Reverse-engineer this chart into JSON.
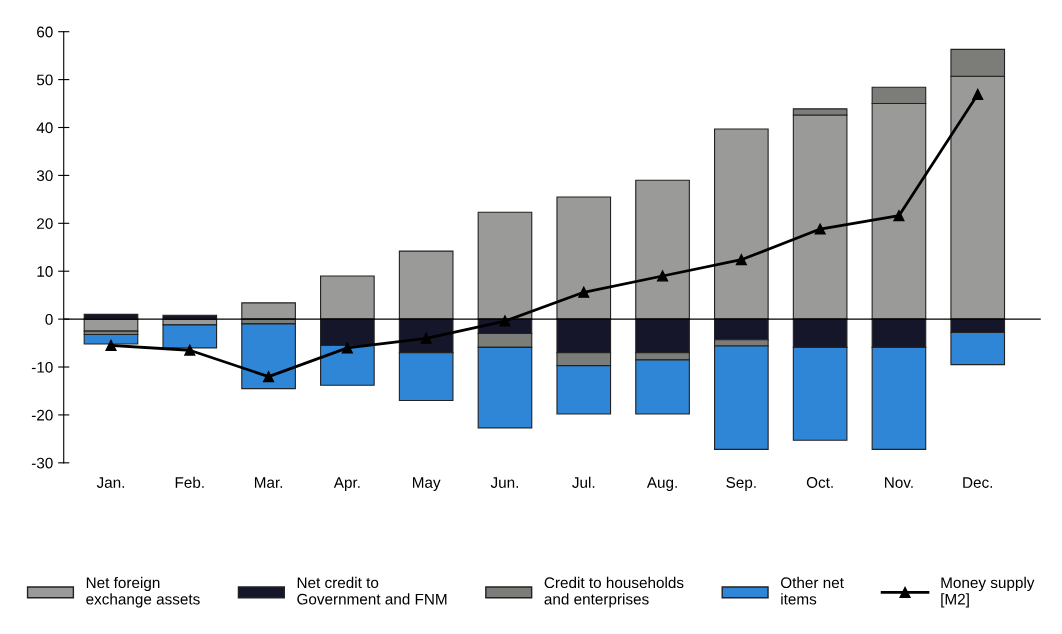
{
  "chart_data": {
    "type": "bar",
    "stacked": true,
    "categories": [
      "Jan.",
      "Feb.",
      "Mar.",
      "Apr.",
      "May",
      "Jun.",
      "Jul.",
      "Aug.",
      "Sep.",
      "Oct.",
      "Nov.",
      "Dec."
    ],
    "series": [
      {
        "name": "Net foreign\nexchange assets",
        "color": "#9a9a98",
        "values": [
          -2.5,
          -1.2,
          3.4,
          9.0,
          14.2,
          22.3,
          25.5,
          29.0,
          39.7,
          42.6,
          45.0,
          50.7
        ]
      },
      {
        "name": "Net credit to\nGovernment and FNM",
        "color": "#16162a",
        "values": [
          1.0,
          0.8,
          null,
          -5.5,
          -7.0,
          -3.0,
          -7.0,
          -7.0,
          -4.3,
          -5.9,
          -5.9,
          -2.8
        ]
      },
      {
        "name": "Credit to households\nand enterprises",
        "color": "#7c7d78",
        "values": [
          -0.7,
          null,
          -1.0,
          null,
          null,
          -2.9,
          -2.7,
          -1.5,
          -1.3,
          1.3,
          3.4,
          5.6
        ]
      },
      {
        "name": "Other net\nitems",
        "color": "#2f86d6",
        "values": [
          -2.0,
          -4.8,
          -13.5,
          -8.3,
          -10.0,
          -16.8,
          -10.1,
          -11.3,
          -21.6,
          -19.4,
          -21.3,
          -6.7
        ]
      },
      {
        "name": "Money supply\n[M2]",
        "type": "line",
        "color": "#000000",
        "marker": "triangle",
        "values": [
          -5.5,
          -6.5,
          -12.0,
          -6.0,
          -4.0,
          -0.4,
          5.6,
          9.0,
          12.4,
          18.8,
          21.6,
          46.9
        ]
      }
    ],
    "ylim": [
      -30,
      60
    ],
    "yticks": [
      -30,
      -20,
      -10,
      0,
      10,
      20,
      30,
      40,
      50,
      60
    ],
    "ref_lines": [
      {
        "axis": "y",
        "value": 0,
        "color": "#000000"
      }
    ],
    "grid": false,
    "legend": "bottom"
  }
}
